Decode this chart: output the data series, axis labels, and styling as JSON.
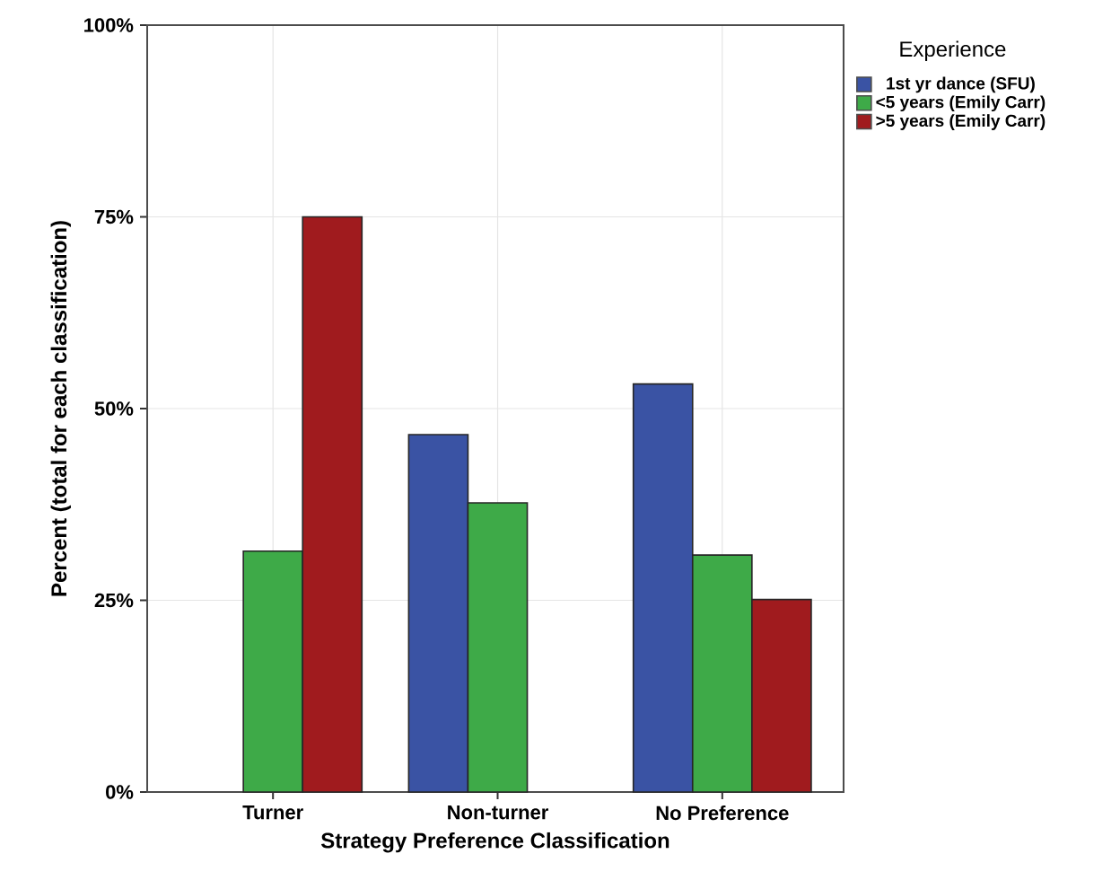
{
  "chart_data": {
    "type": "bar",
    "xlabel": "Strategy Preference Classification",
    "ylabel": "Percent (total for each classification)",
    "legend_title": "Experience",
    "categories": [
      "Turner",
      "Non-turner",
      "No Preference"
    ],
    "series": [
      {
        "name": "1st yr dance (SFU)",
        "color": "#3a53a4",
        "values": [
          null,
          46.6,
          53.2
        ]
      },
      {
        "name": "<5 years (Emily Carr)",
        "color": "#3eaa48",
        "values": [
          31.4,
          37.7,
          30.9
        ]
      },
      {
        "name": ">5 years (Emily Carr)",
        "color": "#a01b1e",
        "values": [
          75,
          null,
          25.1
        ]
      }
    ],
    "ylim": [
      0,
      100
    ],
    "yticks": [
      {
        "value": 0,
        "label": "0%"
      },
      {
        "value": 25,
        "label": "25%"
      },
      {
        "value": 50,
        "label": "50%"
      },
      {
        "value": 75,
        "label": "75%"
      },
      {
        "value": 100,
        "label": "100%"
      }
    ],
    "grid": true,
    "legend": "top right"
  }
}
